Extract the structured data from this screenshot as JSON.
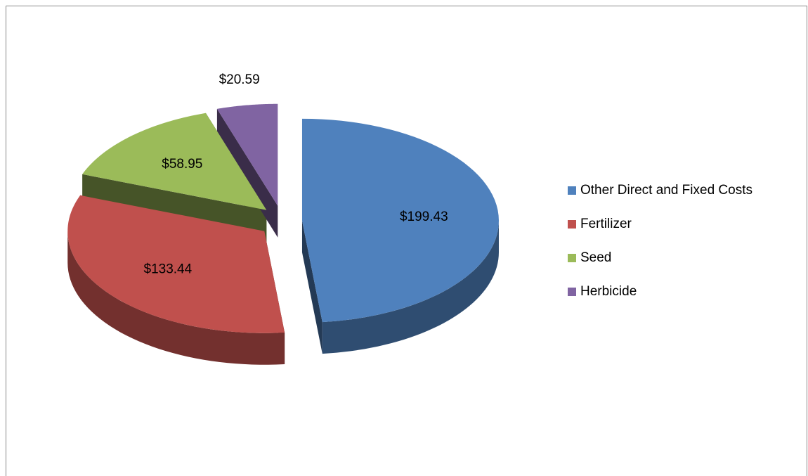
{
  "chart_data": {
    "type": "pie3d",
    "categories": [
      "Other Direct and Fixed Costs",
      "Fertilizer",
      "Seed",
      "Herbicide"
    ],
    "values": [
      199.43,
      133.44,
      58.95,
      20.59
    ],
    "value_labels": [
      "$199.43",
      "$133.44",
      "$58.95",
      "$20.59"
    ],
    "colors": [
      "#4f81bd",
      "#c0504d",
      "#9bbb59",
      "#8064a2"
    ],
    "legend": "right"
  }
}
